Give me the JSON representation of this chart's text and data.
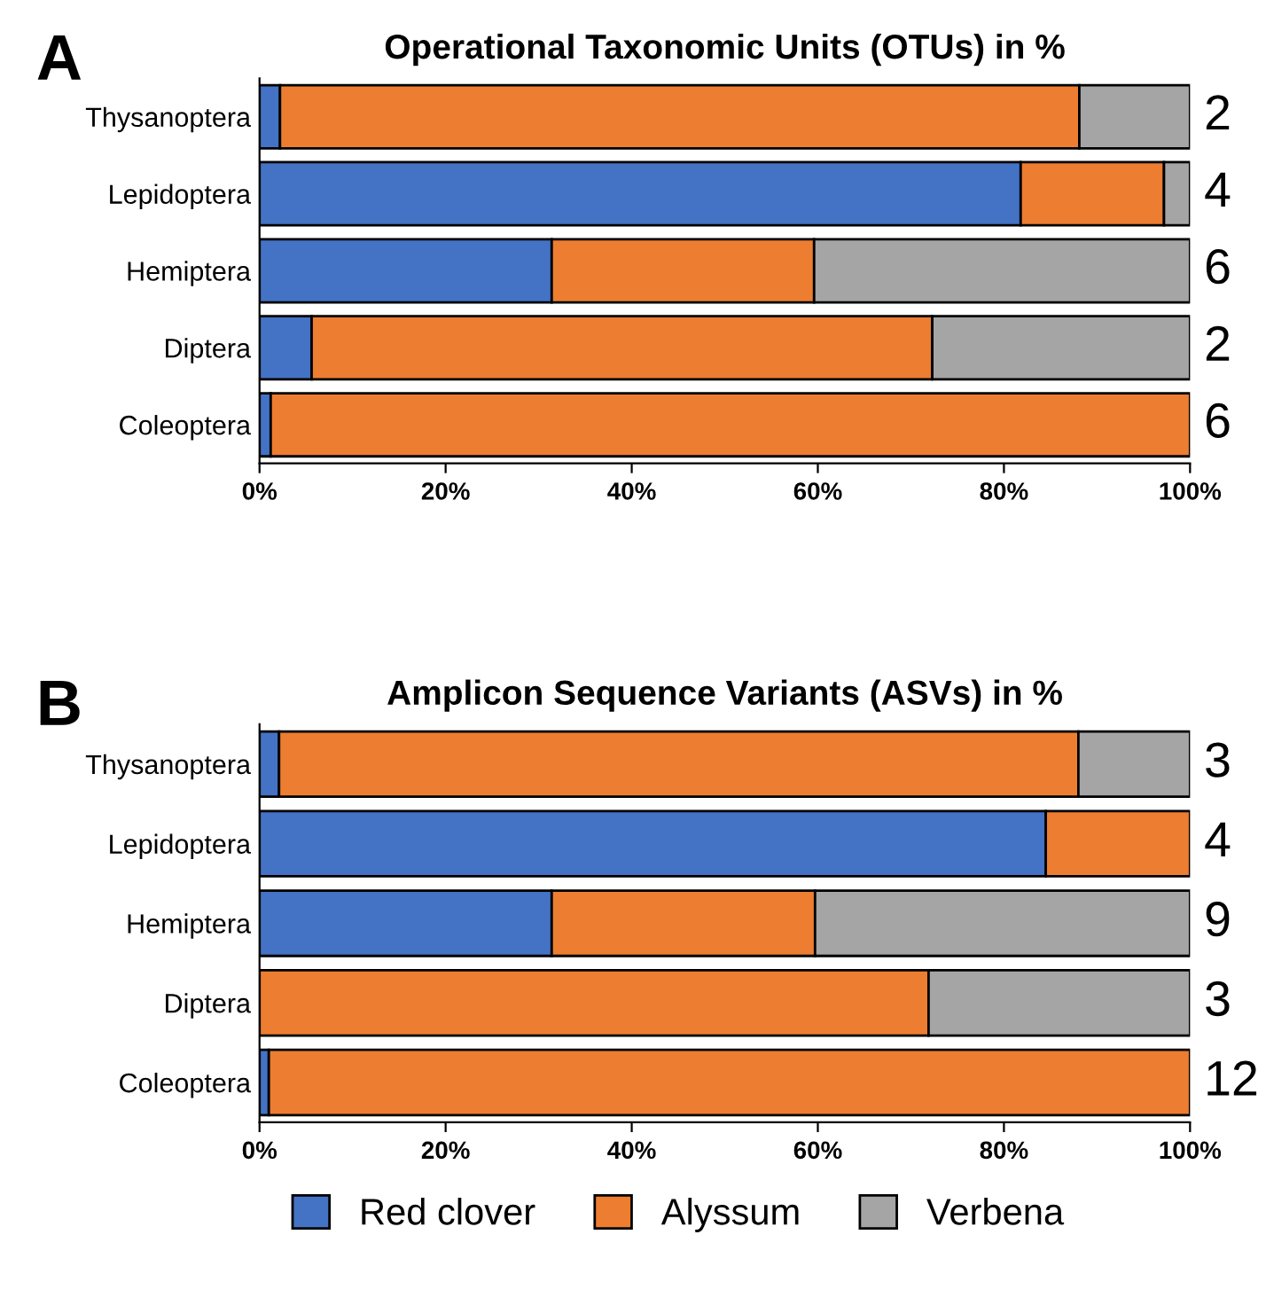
{
  "chart_data": [
    {
      "type": "bar",
      "orientation": "horizontal",
      "stacked": true,
      "title": "Operational Taxonomic Units (OTUs) in %",
      "categories": [
        "Thysanoptera",
        "Lepidoptera",
        "Hemiptera",
        "Diptera",
        "Coleoptera"
      ],
      "series": [
        {
          "color": "#4472c4",
          "values": [
            2.2,
            81.8,
            31.4,
            5.6,
            1.2
          ]
        },
        {
          "color": "#ed7d31",
          "values": [
            85.9,
            15.4,
            28.2,
            66.7,
            98.8
          ]
        },
        {
          "color": "#a5a5a5",
          "values": [
            11.9,
            2.8,
            40.4,
            27.7,
            null
          ]
        }
      ],
      "xlim": [
        0,
        100
      ],
      "xticks": [
        {
          "value": 0,
          "label": "0%"
        },
        {
          "value": 20,
          "label": "20%"
        },
        {
          "value": 40,
          "label": "40%"
        },
        {
          "value": 60,
          "label": "60%"
        },
        {
          "value": 80,
          "label": "80%"
        },
        {
          "value": 100,
          "label": "100%"
        }
      ],
      "grid": false,
      "legend": false,
      "annotations": [
        "A",
        "2",
        "4",
        "6",
        "2",
        "6"
      ]
    },
    {
      "type": "bar",
      "orientation": "horizontal",
      "stacked": true,
      "title": "Amplicon Sequence Variants (ASVs) in %",
      "categories": [
        "Thysanoptera",
        "Lepidoptera",
        "Hemiptera",
        "Diptera",
        "Coleoptera"
      ],
      "series": [
        {
          "name": "Red clover",
          "color": "#4472c4",
          "values": [
            2.1,
            84.5,
            31.4,
            null,
            1.0
          ]
        },
        {
          "name": "Alyssum",
          "color": "#ed7d31",
          "values": [
            85.9,
            15.5,
            28.3,
            71.9,
            99.0
          ]
        },
        {
          "name": "Verbena",
          "color": "#a5a5a5",
          "values": [
            12.0,
            null,
            40.3,
            28.1,
            null
          ]
        }
      ],
      "xlim": [
        0,
        100
      ],
      "xticks": [
        {
          "value": 0,
          "label": "0%"
        },
        {
          "value": 20,
          "label": "20%"
        },
        {
          "value": 40,
          "label": "40%"
        },
        {
          "value": 60,
          "label": "60%"
        },
        {
          "value": 80,
          "label": "80%"
        },
        {
          "value": 100,
          "label": "100%"
        }
      ],
      "grid": false,
      "legend": "bottom",
      "annotations": [
        "B",
        "3",
        "4",
        "9",
        "3",
        "12"
      ]
    }
  ]
}
